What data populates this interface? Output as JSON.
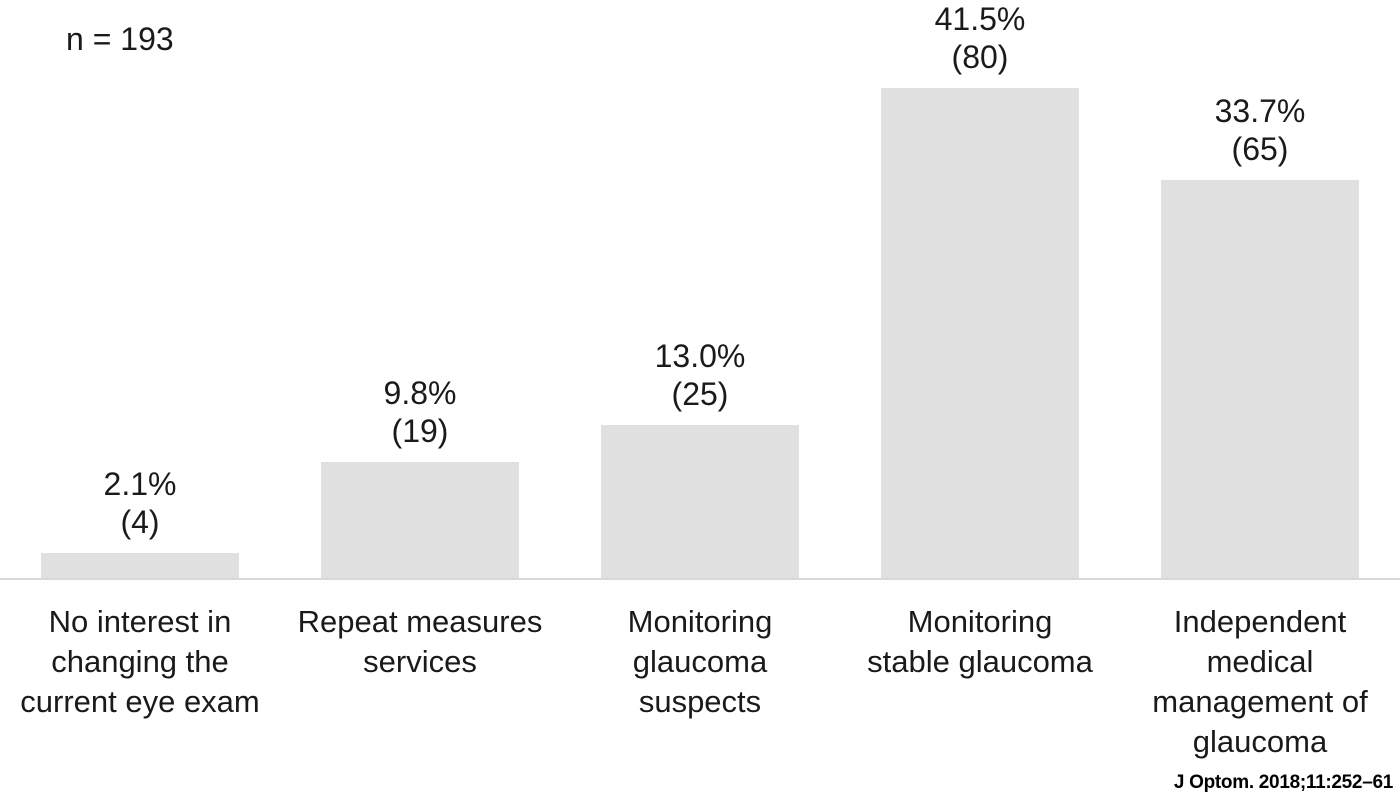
{
  "chart_data": {
    "type": "bar",
    "title": "",
    "note": "n = 193",
    "xlabel": "",
    "ylabel": "",
    "ylim": [
      0,
      49
    ],
    "grid": false,
    "legend": false,
    "bar_color": "#e0e0e0",
    "axis_line_color": "#d8d8d8",
    "categories": [
      "No interest in changing the current eye exam",
      "Repeat measures services",
      "Monitoring glaucoma suspects",
      "Monitoring stable glaucoma",
      "Independent medical management of glaucoma"
    ],
    "values": [
      2.1,
      9.8,
      13.0,
      41.5,
      33.7
    ],
    "counts": [
      4,
      19,
      25,
      80,
      65
    ],
    "bars": [
      {
        "pct": "2.1%",
        "count": "(4)",
        "value": 2.1,
        "label": "No interest in\nchanging the\ncurrent eye exam"
      },
      {
        "pct": "9.8%",
        "count": "(19)",
        "value": 9.8,
        "label": "Repeat measures\nservices"
      },
      {
        "pct": "13.0%",
        "count": "(25)",
        "value": 13.0,
        "label": "Monitoring\nglaucoma\nsuspects"
      },
      {
        "pct": "41.5%",
        "count": "(80)",
        "value": 41.5,
        "label": "Monitoring\nstable glaucoma"
      },
      {
        "pct": "33.7%",
        "count": "(65)",
        "value": 33.7,
        "label": "Independent\nmedical\nmanagement of\nglaucoma"
      }
    ]
  },
  "citation": "J Optom. 2018;11:252–61"
}
